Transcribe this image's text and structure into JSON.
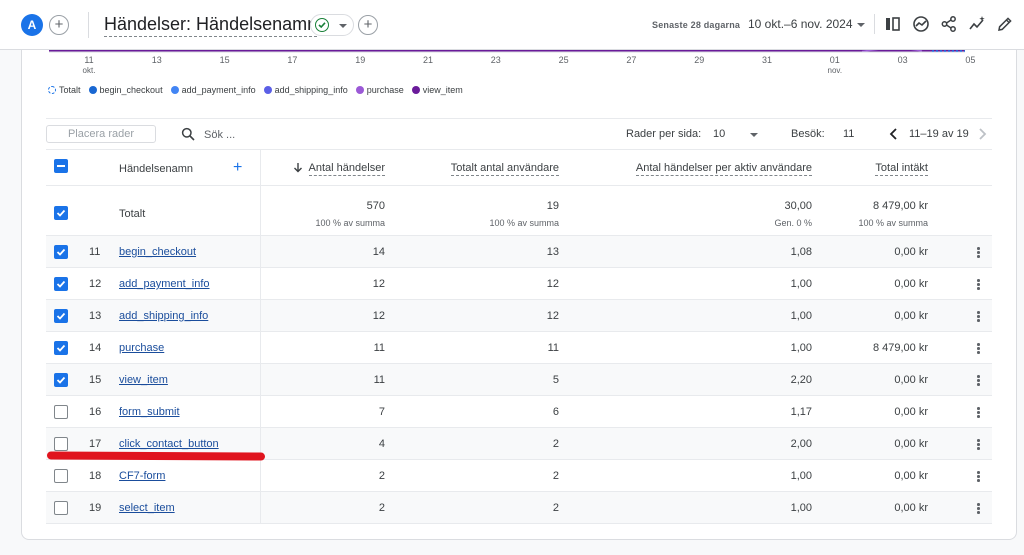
{
  "header": {
    "avatar_letter": "A",
    "title": "Händelser: Händelsenamn",
    "range_label": "Senaste 28 dagarna",
    "range_value": "10 okt.–6 nov. 2024"
  },
  "chart_data": {
    "type": "line",
    "x_ticks": [
      {
        "label": "11",
        "sub": "okt."
      },
      {
        "label": "13",
        "sub": ""
      },
      {
        "label": "15",
        "sub": ""
      },
      {
        "label": "17",
        "sub": ""
      },
      {
        "label": "19",
        "sub": ""
      },
      {
        "label": "21",
        "sub": ""
      },
      {
        "label": "23",
        "sub": ""
      },
      {
        "label": "25",
        "sub": ""
      },
      {
        "label": "27",
        "sub": ""
      },
      {
        "label": "29",
        "sub": ""
      },
      {
        "label": "31",
        "sub": ""
      },
      {
        "label": "01",
        "sub": "nov."
      },
      {
        "label": "03",
        "sub": ""
      },
      {
        "label": "05",
        "sub": ""
      }
    ],
    "legend": [
      {
        "name": "Totalt",
        "color": "#1a73e8",
        "style": "ring"
      },
      {
        "name": "begin_checkout",
        "color": "#1967d2"
      },
      {
        "name": "add_payment_info",
        "color": "#4285f4"
      },
      {
        "name": "add_shipping_info",
        "color": "#5b5fe6"
      },
      {
        "name": "purchase",
        "color": "#9b59d6"
      },
      {
        "name": "view_item",
        "color": "#6a1b9a"
      }
    ]
  },
  "toolbar": {
    "place_rows": "Placera rader",
    "search_placeholder": "Sök ...",
    "rows_per_page_label": "Rader per sida:",
    "rows_per_page_value": "10",
    "goto_label": "Besök:",
    "goto_value": "11",
    "range_text": "11–19 av 19"
  },
  "table": {
    "columns": {
      "name": "Händelsenamn",
      "count": "Antal händelser",
      "users": "Totalt antal användare",
      "per_user": "Antal händelser per aktiv användare",
      "revenue": "Total intäkt"
    },
    "totals": {
      "label": "Totalt",
      "count": "570",
      "count_sub": "100 % av summa",
      "users": "19",
      "users_sub": "100 % av summa",
      "per_user": "30,00",
      "per_user_sub": "Gen. 0 %",
      "revenue": "8 479,00 kr",
      "revenue_sub": "100 % av summa"
    },
    "rows": [
      {
        "idx": "11",
        "name": "begin_checkout",
        "count": "14",
        "users": "13",
        "per_user": "1,08",
        "revenue": "0,00 kr",
        "checked": true
      },
      {
        "idx": "12",
        "name": "add_payment_info",
        "count": "12",
        "users": "12",
        "per_user": "1,00",
        "revenue": "0,00 kr",
        "checked": true
      },
      {
        "idx": "13",
        "name": "add_shipping_info",
        "count": "12",
        "users": "12",
        "per_user": "1,00",
        "revenue": "0,00 kr",
        "checked": true
      },
      {
        "idx": "14",
        "name": "purchase",
        "count": "11",
        "users": "11",
        "per_user": "1,00",
        "revenue": "8 479,00 kr",
        "checked": true
      },
      {
        "idx": "15",
        "name": "view_item",
        "count": "11",
        "users": "5",
        "per_user": "2,20",
        "revenue": "0,00 kr",
        "checked": true
      },
      {
        "idx": "16",
        "name": "form_submit",
        "count": "7",
        "users": "6",
        "per_user": "1,17",
        "revenue": "0,00 kr",
        "checked": false
      },
      {
        "idx": "17",
        "name": "click_contact_button",
        "count": "4",
        "users": "2",
        "per_user": "2,00",
        "revenue": "0,00 kr",
        "checked": false
      },
      {
        "idx": "18",
        "name": "CF7-form",
        "count": "2",
        "users": "2",
        "per_user": "1,00",
        "revenue": "0,00 kr",
        "checked": false
      },
      {
        "idx": "19",
        "name": "select_item",
        "count": "2",
        "users": "2",
        "per_user": "1,00",
        "revenue": "0,00 kr",
        "checked": false
      }
    ]
  }
}
